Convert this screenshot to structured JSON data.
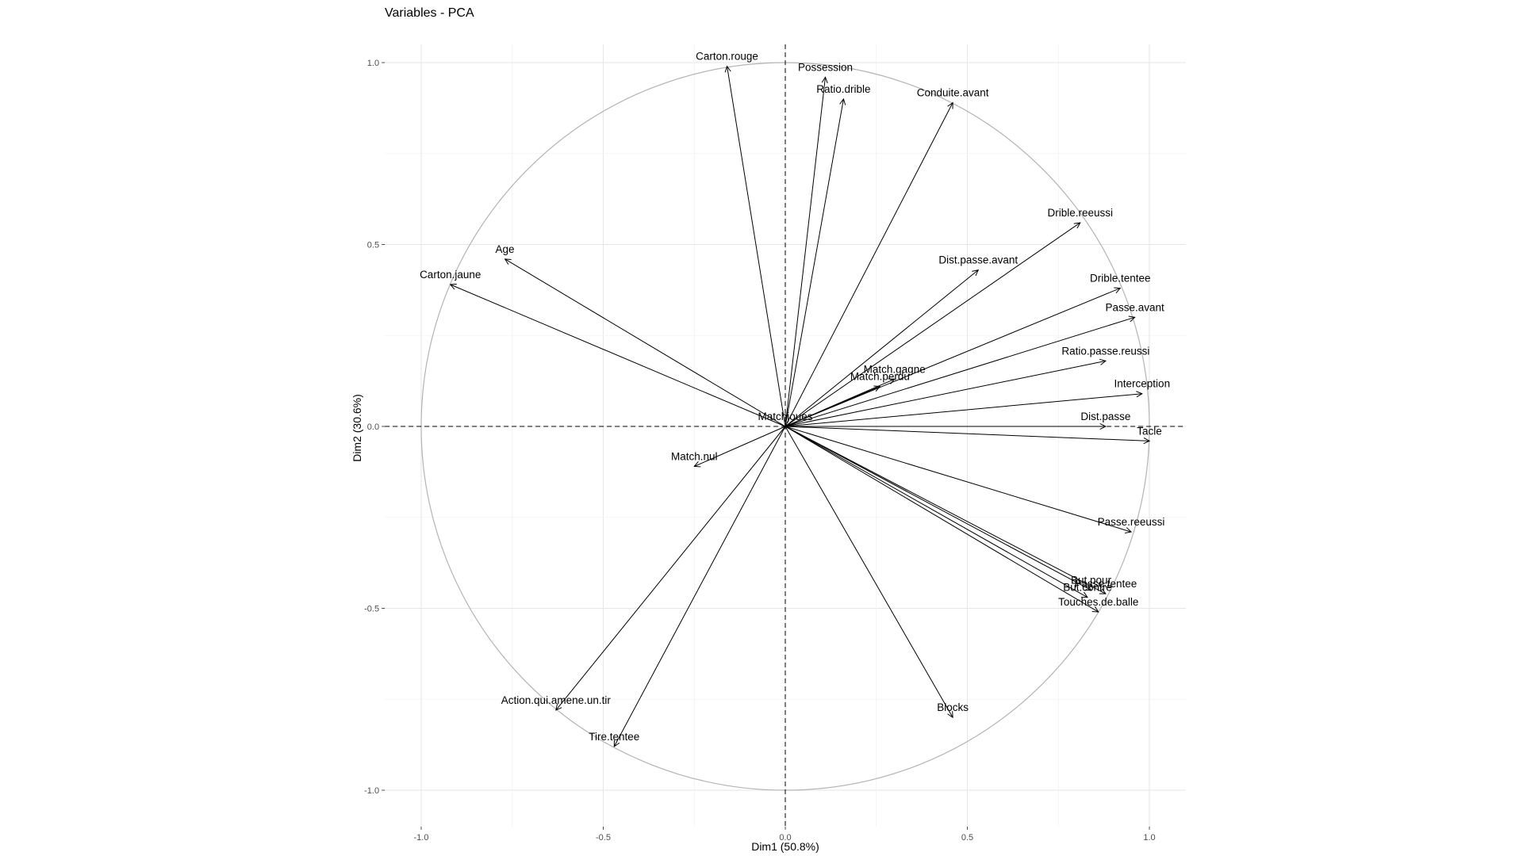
{
  "chart_data": {
    "type": "scatter",
    "subtype": "pca-variables-correlation-circle",
    "title": "Variables - PCA",
    "xlabel": "Dim1 (50.8%)",
    "ylabel": "Dim2 (30.6%)",
    "xlim": [
      -1.1,
      1.1
    ],
    "ylim": [
      -1.1,
      1.05
    ],
    "x_ticks": [
      -1.0,
      -0.5,
      0.0,
      0.5,
      1.0
    ],
    "x_tick_labels": [
      "-1.0",
      "-0.5",
      "0.0",
      "0.5",
      "1.0"
    ],
    "y_ticks": [
      -1.0,
      -0.5,
      0.0,
      0.5,
      1.0
    ],
    "y_tick_labels": [
      "-1.0",
      "-0.5",
      "0.0",
      "0.5",
      "1.0"
    ],
    "grid": true,
    "unit_circle": true,
    "variables": [
      {
        "name": "Carton.rouge",
        "x": -0.16,
        "y": 0.99
      },
      {
        "name": "Possession",
        "x": 0.11,
        "y": 0.96
      },
      {
        "name": "Ratio.drible",
        "x": 0.16,
        "y": 0.9
      },
      {
        "name": "Conduite.avant",
        "x": 0.46,
        "y": 0.89
      },
      {
        "name": "Drible.reeussi",
        "x": 0.81,
        "y": 0.56
      },
      {
        "name": "Dist.passe.avant",
        "x": 0.53,
        "y": 0.43
      },
      {
        "name": "Drible.tentee",
        "x": 0.92,
        "y": 0.38
      },
      {
        "name": "Passe.avant",
        "x": 0.96,
        "y": 0.3
      },
      {
        "name": "Ratio.passe.reussi",
        "x": 0.88,
        "y": 0.18
      },
      {
        "name": "Match.gagne",
        "x": 0.3,
        "y": 0.13
      },
      {
        "name": "Match.perdu",
        "x": 0.26,
        "y": 0.11
      },
      {
        "name": "Interception",
        "x": 0.98,
        "y": 0.09
      },
      {
        "name": "Dist.passe",
        "x": 0.88,
        "y": 0.0
      },
      {
        "name": "Matchjoues",
        "x": 0.0,
        "y": 0.0
      },
      {
        "name": "Tacle",
        "x": 1.0,
        "y": -0.04
      },
      {
        "name": "Age",
        "x": -0.77,
        "y": 0.46
      },
      {
        "name": "Carton.jaune",
        "x": -0.92,
        "y": 0.39
      },
      {
        "name": "Match.nul",
        "x": -0.25,
        "y": -0.11
      },
      {
        "name": "Passe.reeussi",
        "x": 0.95,
        "y": -0.29
      },
      {
        "name": "But.pour",
        "x": 0.84,
        "y": -0.45
      },
      {
        "name": "Passe.tentee",
        "x": 0.88,
        "y": -0.46
      },
      {
        "name": "But.contre",
        "x": 0.83,
        "y": -0.47
      },
      {
        "name": "Touches.de.balle",
        "x": 0.86,
        "y": -0.51
      },
      {
        "name": "Blocks",
        "x": 0.46,
        "y": -0.8
      },
      {
        "name": "Action.qui.amene.un.tir",
        "x": -0.63,
        "y": -0.78
      },
      {
        "name": "Tire.tentee",
        "x": -0.47,
        "y": -0.88
      }
    ]
  }
}
